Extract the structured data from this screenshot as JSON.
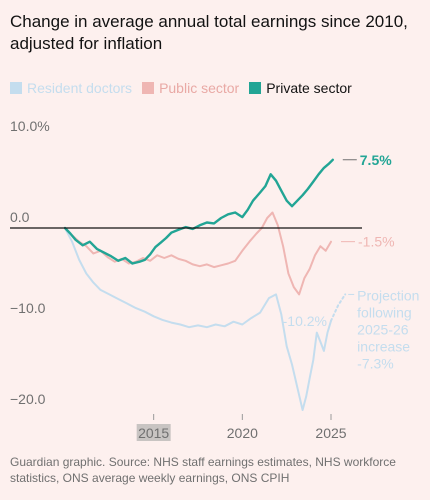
{
  "title": "Change in average annual total earnings since 2010, adjusted for inflation",
  "legend": [
    {
      "label": "Resident doctors",
      "color": "#c4ddee"
    },
    {
      "label": "Public sector",
      "color": "#efb6b3"
    },
    {
      "label": "Private sector",
      "color": "#22a595"
    }
  ],
  "source": "Guardian graphic. Source: NHS staff earnings estimates, NHS workforce statistics, ONS average weekly earnings, ONS CPIH",
  "chart_data": {
    "type": "line",
    "title": "Change in average annual total earnings since 2010, adjusted for inflation",
    "xlabel": "",
    "ylabel": "",
    "xlim": [
      2010,
      2027
    ],
    "ylim": [
      -21,
      10.5
    ],
    "y_ticks": [
      {
        "value": 10,
        "label": "10.0%"
      },
      {
        "value": 0,
        "label": "0.0"
      },
      {
        "value": -10,
        "label": "−10.0"
      },
      {
        "value": -20,
        "label": "−20.0"
      }
    ],
    "x_ticks": [
      {
        "value": 2015,
        "label": "2015"
      },
      {
        "value": 2020,
        "label": "2020"
      },
      {
        "value": 2025,
        "label": "2025"
      }
    ],
    "grid": false,
    "legend_position": "top-left",
    "series": [
      {
        "name": "Resident doctors",
        "color": "#c4ddee",
        "points": [
          [
            2010.0,
            0.0
          ],
          [
            2010.4,
            -1.5
          ],
          [
            2010.8,
            -3.5
          ],
          [
            2011.2,
            -5.0
          ],
          [
            2011.6,
            -6.0
          ],
          [
            2012.0,
            -6.8
          ],
          [
            2012.5,
            -7.3
          ],
          [
            2013.0,
            -7.8
          ],
          [
            2013.5,
            -8.3
          ],
          [
            2014.0,
            -8.8
          ],
          [
            2014.5,
            -9.2
          ],
          [
            2015.0,
            -9.7
          ],
          [
            2015.5,
            -10.1
          ],
          [
            2016.0,
            -10.4
          ],
          [
            2016.5,
            -10.6
          ],
          [
            2017.0,
            -10.9
          ],
          [
            2017.5,
            -10.7
          ],
          [
            2018.0,
            -10.9
          ],
          [
            2018.5,
            -10.6
          ],
          [
            2019.0,
            -10.8
          ],
          [
            2019.5,
            -10.3
          ],
          [
            2020.0,
            -10.6
          ],
          [
            2020.5,
            -9.9
          ],
          [
            2021.0,
            -9.3
          ],
          [
            2021.5,
            -7.7
          ],
          [
            2021.9,
            -7.3
          ],
          [
            2022.2,
            -9.5
          ],
          [
            2022.5,
            -13.0
          ],
          [
            2022.8,
            -15.0
          ],
          [
            2023.1,
            -17.5
          ],
          [
            2023.4,
            -20.0
          ],
          [
            2023.6,
            -18.5
          ],
          [
            2023.8,
            -16.5
          ],
          [
            2024.0,
            -14.5
          ],
          [
            2024.2,
            -11.5
          ],
          [
            2024.4,
            -12.5
          ],
          [
            2024.6,
            -13.5
          ],
          [
            2024.8,
            -11.5
          ],
          [
            2025.0,
            -10.2
          ]
        ]
      },
      {
        "name": "Projection following 2025-26 increase",
        "color": "#c4ddee",
        "dashed": true,
        "points": [
          [
            2025.0,
            -10.2
          ],
          [
            2025.4,
            -8.5
          ],
          [
            2025.8,
            -7.3
          ]
        ]
      },
      {
        "name": "Public sector",
        "color": "#efb6b3",
        "points": [
          [
            2010.0,
            0.0
          ],
          [
            2010.4,
            -0.8
          ],
          [
            2010.8,
            -1.5
          ],
          [
            2011.2,
            -2.0
          ],
          [
            2011.6,
            -2.8
          ],
          [
            2012.0,
            -2.5
          ],
          [
            2012.4,
            -3.2
          ],
          [
            2012.8,
            -3.7
          ],
          [
            2013.2,
            -3.4
          ],
          [
            2013.6,
            -3.9
          ],
          [
            2014.0,
            -3.7
          ],
          [
            2014.4,
            -3.3
          ],
          [
            2014.8,
            -3.6
          ],
          [
            2015.2,
            -3.0
          ],
          [
            2015.6,
            -3.3
          ],
          [
            2016.0,
            -3.0
          ],
          [
            2016.4,
            -3.4
          ],
          [
            2016.8,
            -3.6
          ],
          [
            2017.2,
            -4.0
          ],
          [
            2017.6,
            -4.2
          ],
          [
            2018.0,
            -4.0
          ],
          [
            2018.4,
            -4.3
          ],
          [
            2018.8,
            -4.1
          ],
          [
            2019.2,
            -3.9
          ],
          [
            2019.6,
            -3.6
          ],
          [
            2020.0,
            -2.5
          ],
          [
            2020.4,
            -1.5
          ],
          [
            2020.8,
            -0.6
          ],
          [
            2021.1,
            0.0
          ],
          [
            2021.4,
            1.1
          ],
          [
            2021.7,
            1.7
          ],
          [
            2022.0,
            0.3
          ],
          [
            2022.3,
            -2.0
          ],
          [
            2022.6,
            -5.0
          ],
          [
            2022.9,
            -6.5
          ],
          [
            2023.2,
            -7.3
          ],
          [
            2023.5,
            -5.5
          ],
          [
            2023.8,
            -4.5
          ],
          [
            2024.1,
            -3.0
          ],
          [
            2024.4,
            -2.0
          ],
          [
            2024.7,
            -2.5
          ],
          [
            2025.0,
            -1.5
          ]
        ]
      },
      {
        "name": "Private sector",
        "color": "#22a595",
        "points": [
          [
            2010.0,
            0.0
          ],
          [
            2010.3,
            -0.6
          ],
          [
            2010.6,
            -1.3
          ],
          [
            2011.0,
            -1.9
          ],
          [
            2011.4,
            -1.5
          ],
          [
            2011.8,
            -2.3
          ],
          [
            2012.2,
            -2.7
          ],
          [
            2012.6,
            -3.1
          ],
          [
            2013.0,
            -3.6
          ],
          [
            2013.4,
            -3.3
          ],
          [
            2013.8,
            -3.9
          ],
          [
            2014.2,
            -3.7
          ],
          [
            2014.5,
            -3.5
          ],
          [
            2014.8,
            -2.9
          ],
          [
            2015.1,
            -2.1
          ],
          [
            2015.4,
            -1.6
          ],
          [
            2015.7,
            -1.1
          ],
          [
            2016.0,
            -0.5
          ],
          [
            2016.4,
            -0.2
          ],
          [
            2016.8,
            0.1
          ],
          [
            2017.2,
            -0.1
          ],
          [
            2017.6,
            0.3
          ],
          [
            2018.0,
            0.6
          ],
          [
            2018.4,
            0.5
          ],
          [
            2018.8,
            1.1
          ],
          [
            2019.2,
            1.5
          ],
          [
            2019.6,
            1.7
          ],
          [
            2020.0,
            1.2
          ],
          [
            2020.3,
            2.0
          ],
          [
            2020.6,
            3.0
          ],
          [
            2021.0,
            3.9
          ],
          [
            2021.3,
            4.6
          ],
          [
            2021.6,
            5.9
          ],
          [
            2021.9,
            5.2
          ],
          [
            2022.2,
            4.1
          ],
          [
            2022.5,
            3.0
          ],
          [
            2022.8,
            2.4
          ],
          [
            2023.1,
            3.0
          ],
          [
            2023.4,
            3.6
          ],
          [
            2023.7,
            4.3
          ],
          [
            2024.0,
            5.1
          ],
          [
            2024.3,
            5.9
          ],
          [
            2024.6,
            6.6
          ],
          [
            2024.9,
            7.1
          ],
          [
            2025.1,
            7.5
          ]
        ]
      }
    ],
    "annotations": [
      {
        "text": "7.5%",
        "series": "Private sector",
        "color": "#22a595",
        "bold": true
      },
      {
        "text": "-1.5%",
        "series": "Public sector",
        "color": "#efb6b3"
      },
      {
        "text": "-10.2%",
        "series": "Resident doctors",
        "color": "#c4ddee"
      },
      {
        "lines": [
          "Projection",
          "following",
          "2025-26",
          "increase",
          "-7.3%"
        ],
        "series": "Projection following 2025-26 increase",
        "color": "#c4ddee"
      }
    ]
  }
}
